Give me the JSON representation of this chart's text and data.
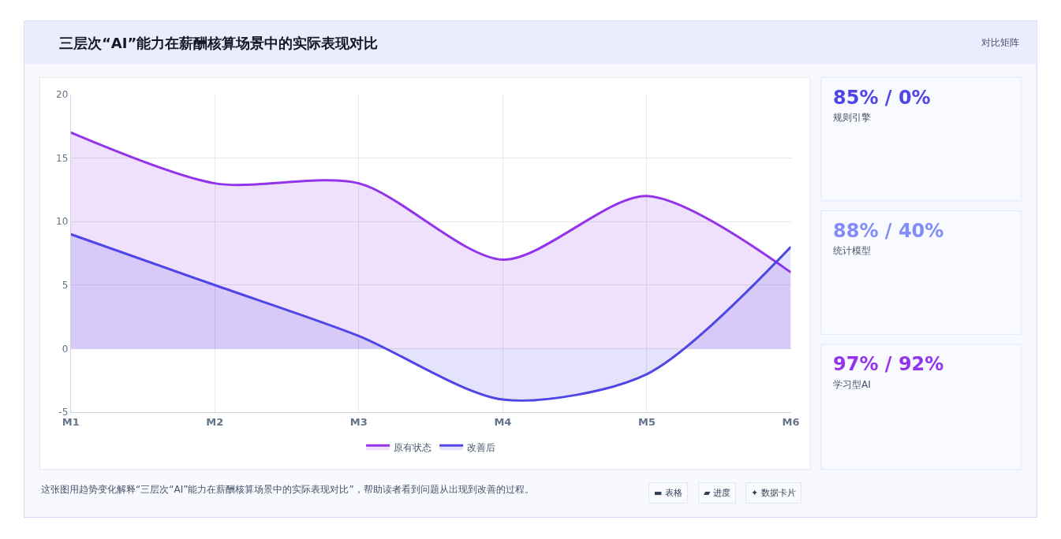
{
  "chart_data": [
    {
      "type": "area",
      "title": "三层次“AI”能力在薪酬核算场景中的实际表现对比",
      "categories": [
        "M1",
        "M2",
        "M3",
        "M4",
        "M5",
        "M6"
      ],
      "series": [
        {
          "name": "原有状态",
          "color": "#9333ea",
          "values": [
            17,
            13,
            13,
            7,
            12,
            6
          ]
        },
        {
          "name": "改善后",
          "color": "#4f46e5",
          "values": [
            9,
            5,
            1,
            -4,
            -2,
            8
          ]
        }
      ],
      "ylim": [
        -5,
        20
      ],
      "yticks": [
        -5,
        0,
        5,
        10,
        15,
        20
      ],
      "grid": true,
      "legend": "bottom",
      "marker": "none",
      "line_style": "solid",
      "annotations": [
        "对比矩阵",
        "这张图用趋势变化解释“三层次“AI”能力在薪酬核算场景中的实际表现对比”，帮助读者看到问题从出现到改善的过程。",
        "▬ 表格",
        "▰ 进度",
        "✦ 数据卡片"
      ]
    },
    {
      "type": "other",
      "annotations": [
        "85% / 0%",
        "规则引擎",
        "88% / 40%",
        "统计模型",
        "97% / 92%",
        "学习型AI"
      ]
    }
  ]
}
